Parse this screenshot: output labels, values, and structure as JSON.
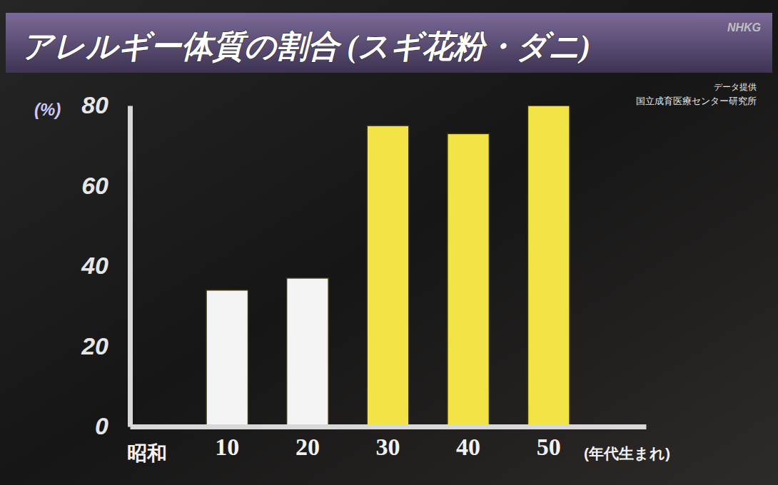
{
  "chart_data": {
    "type": "bar",
    "title": "アレルギー体質の割合 (スギ花粉・ダニ)",
    "y_label": "(%)",
    "x_prefix": "昭和",
    "x_label": "(年代生まれ)",
    "source_label": "データ提供",
    "source": "国立成育医療センター研究所",
    "watermark": "NHKG",
    "categories": [
      "10",
      "20",
      "30",
      "40",
      "50"
    ],
    "values": [
      34,
      37,
      75,
      73,
      80
    ],
    "colors": [
      "#f4f4f4",
      "#f4f4f4",
      "#f2e446",
      "#f2e446",
      "#f2e446"
    ],
    "ylim": [
      0,
      80
    ],
    "yticks": [
      0,
      20,
      40,
      60,
      80
    ],
    "grid": false
  }
}
